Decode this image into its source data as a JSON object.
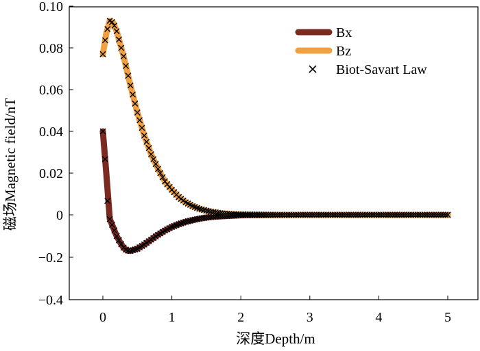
{
  "chart_data": {
    "type": "line",
    "title": "",
    "xlabel": "深度Depth/m",
    "ylabel": "磁场Magnetic field/nT",
    "xlim": [
      -0.5,
      5.5
    ],
    "ylim": [
      -0.4,
      0.1
    ],
    "x_ticks": [
      "0",
      "1",
      "2",
      "3",
      "4",
      "5"
    ],
    "x_tick_values": [
      0,
      1,
      2,
      3,
      4,
      5
    ],
    "y_ticks": [
      "0.10",
      "0.08",
      "0.06",
      "0.04",
      "0.02",
      "0",
      "−0.2",
      "−0.4"
    ],
    "y_tick_values": [
      0.1,
      0.08,
      0.06,
      0.04,
      0.02,
      0,
      -0.2,
      -0.4
    ],
    "grid": false,
    "legend_position": "top-right",
    "series": [
      {
        "name": "Bx",
        "color": "#7b2a22",
        "style": "thick-line",
        "x": [
          0,
          0.05,
          0.1,
          0.15,
          0.2,
          0.25,
          0.3,
          0.35,
          0.4,
          0.5,
          0.6,
          0.7,
          0.8,
          0.9,
          1.0,
          1.1,
          1.2,
          1.3,
          1.4,
          1.5,
          1.6,
          1.8,
          2.0,
          2.5,
          3.0,
          3.5,
          4.0,
          4.5,
          5.0
        ],
        "values": [
          0.04,
          0.02,
          -0.02,
          -0.06,
          -0.1,
          -0.13,
          -0.155,
          -0.168,
          -0.17,
          -0.16,
          -0.14,
          -0.117,
          -0.094,
          -0.074,
          -0.057,
          -0.044,
          -0.033,
          -0.025,
          -0.018,
          -0.013,
          -0.009,
          -0.005,
          -0.002,
          -0.0005,
          0,
          0,
          0,
          0,
          0
        ]
      },
      {
        "name": "Bz",
        "color": "#f0a040",
        "style": "thick-line",
        "x": [
          0,
          0.05,
          0.1,
          0.15,
          0.2,
          0.25,
          0.3,
          0.35,
          0.4,
          0.5,
          0.6,
          0.7,
          0.8,
          0.9,
          1.0,
          1.1,
          1.2,
          1.3,
          1.4,
          1.5,
          1.6,
          1.7,
          1.8,
          2.0,
          2.5,
          3.0,
          3.5,
          4.0,
          4.5,
          5.0
        ],
        "values": [
          0.077,
          0.087,
          0.093,
          0.092,
          0.088,
          0.082,
          0.076,
          0.069,
          0.062,
          0.049,
          0.038,
          0.029,
          0.022,
          0.016,
          0.012,
          0.0085,
          0.006,
          0.0042,
          0.0029,
          0.002,
          0.0013,
          0.0008,
          0.0005,
          0.0002,
          0,
          0,
          0,
          0,
          0,
          0
        ]
      },
      {
        "name": "Biot-Savart Law",
        "color": "#000000",
        "style": "x-markers",
        "applies_to": [
          "Bx",
          "Bz"
        ]
      }
    ]
  }
}
